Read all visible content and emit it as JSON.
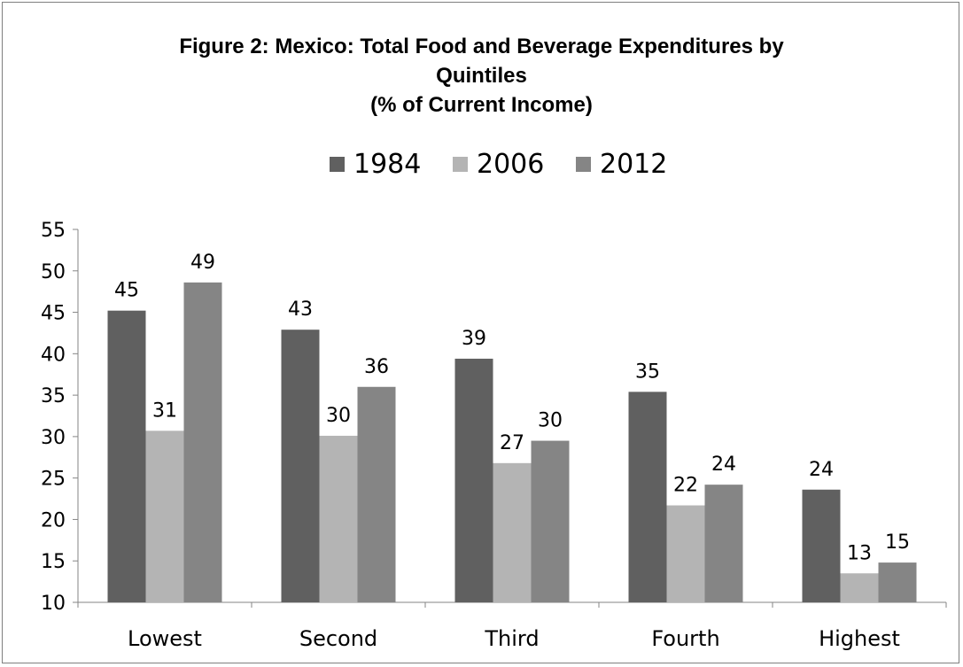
{
  "chart_data": {
    "type": "bar",
    "title_lines": [
      "Figure 2: Mexico: Total Food and Beverage Expenditures by",
      "Quintiles",
      "(% of Current Income)"
    ],
    "categories": [
      "Lowest",
      "Second",
      "Third",
      "Fourth",
      "Highest"
    ],
    "series": [
      {
        "name": "1984",
        "color": "#606060",
        "values": [
          45.2,
          42.9,
          39.4,
          35.4,
          23.6
        ],
        "labels": [
          "45",
          "43",
          "39",
          "35",
          "24"
        ]
      },
      {
        "name": "2006",
        "color": "#b4b4b4",
        "values": [
          30.7,
          30.1,
          26.8,
          21.7,
          13.5
        ],
        "labels": [
          "31",
          "30",
          "27",
          "22",
          "13"
        ]
      },
      {
        "name": "2012",
        "color": "#858585",
        "values": [
          48.6,
          36.0,
          29.5,
          24.2,
          14.8
        ],
        "labels": [
          "49",
          "36",
          "30",
          "24",
          "15"
        ]
      }
    ],
    "ylim": [
      10,
      55
    ],
    "yticks": [
      10,
      15,
      20,
      25,
      30,
      35,
      40,
      45,
      50,
      55
    ],
    "ytick_labels": [
      "10",
      "15",
      "20",
      "25",
      "30",
      "35",
      "40",
      "45",
      "50",
      "55"
    ],
    "grid": false,
    "legend_position": "top"
  }
}
